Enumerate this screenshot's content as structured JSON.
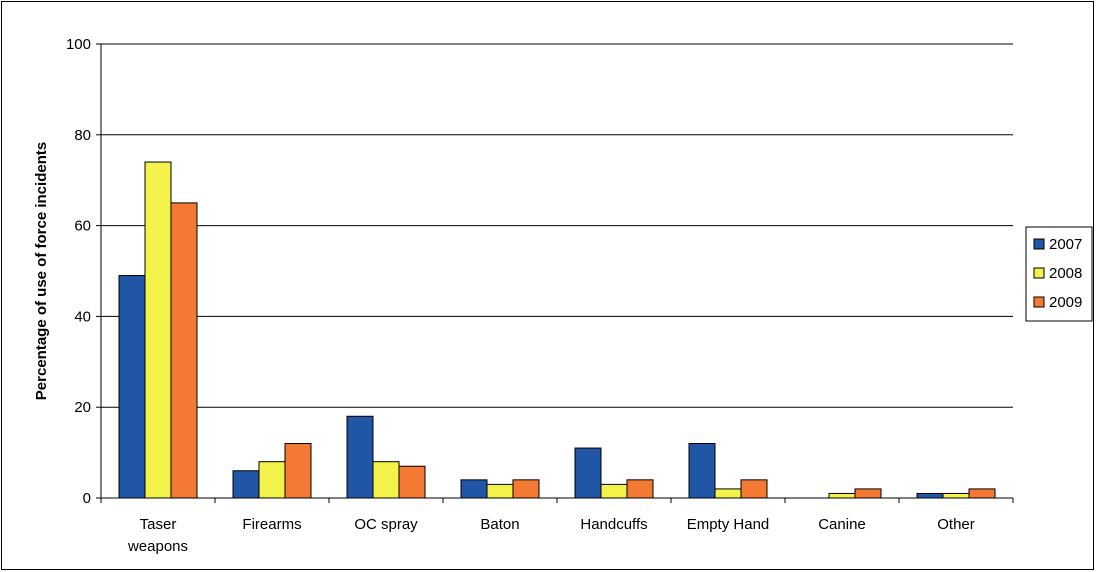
{
  "chart_data": {
    "type": "bar",
    "categories": [
      "Taser weapons",
      "Firearms",
      "OC spray",
      "Baton",
      "Handcuffs",
      "Empty Hand",
      "Canine",
      "Other"
    ],
    "category_lines": [
      [
        "Taser",
        "weapons"
      ],
      [
        "Firearms"
      ],
      [
        "OC spray"
      ],
      [
        "Baton"
      ],
      [
        "Handcuffs"
      ],
      [
        "Empty Hand"
      ],
      [
        "Canine"
      ],
      [
        "Other"
      ]
    ],
    "series": [
      {
        "name": "2007",
        "color": "#2155a5",
        "values": [
          49,
          6,
          18,
          4,
          11,
          12,
          0,
          1
        ]
      },
      {
        "name": "2008",
        "color": "#f2f24a",
        "values": [
          74,
          8,
          8,
          3,
          3,
          2,
          1,
          1
        ]
      },
      {
        "name": "2009",
        "color": "#f47a34",
        "values": [
          65,
          12,
          7,
          4,
          4,
          4,
          2,
          2
        ]
      }
    ],
    "ylabel": "Percentage of use of force incidents",
    "xlabel": "",
    "ylim": [
      0,
      100
    ],
    "yticks": [
      "0",
      "20",
      "40",
      "60",
      "80",
      "100"
    ],
    "grid": true,
    "legend_position": "right"
  }
}
